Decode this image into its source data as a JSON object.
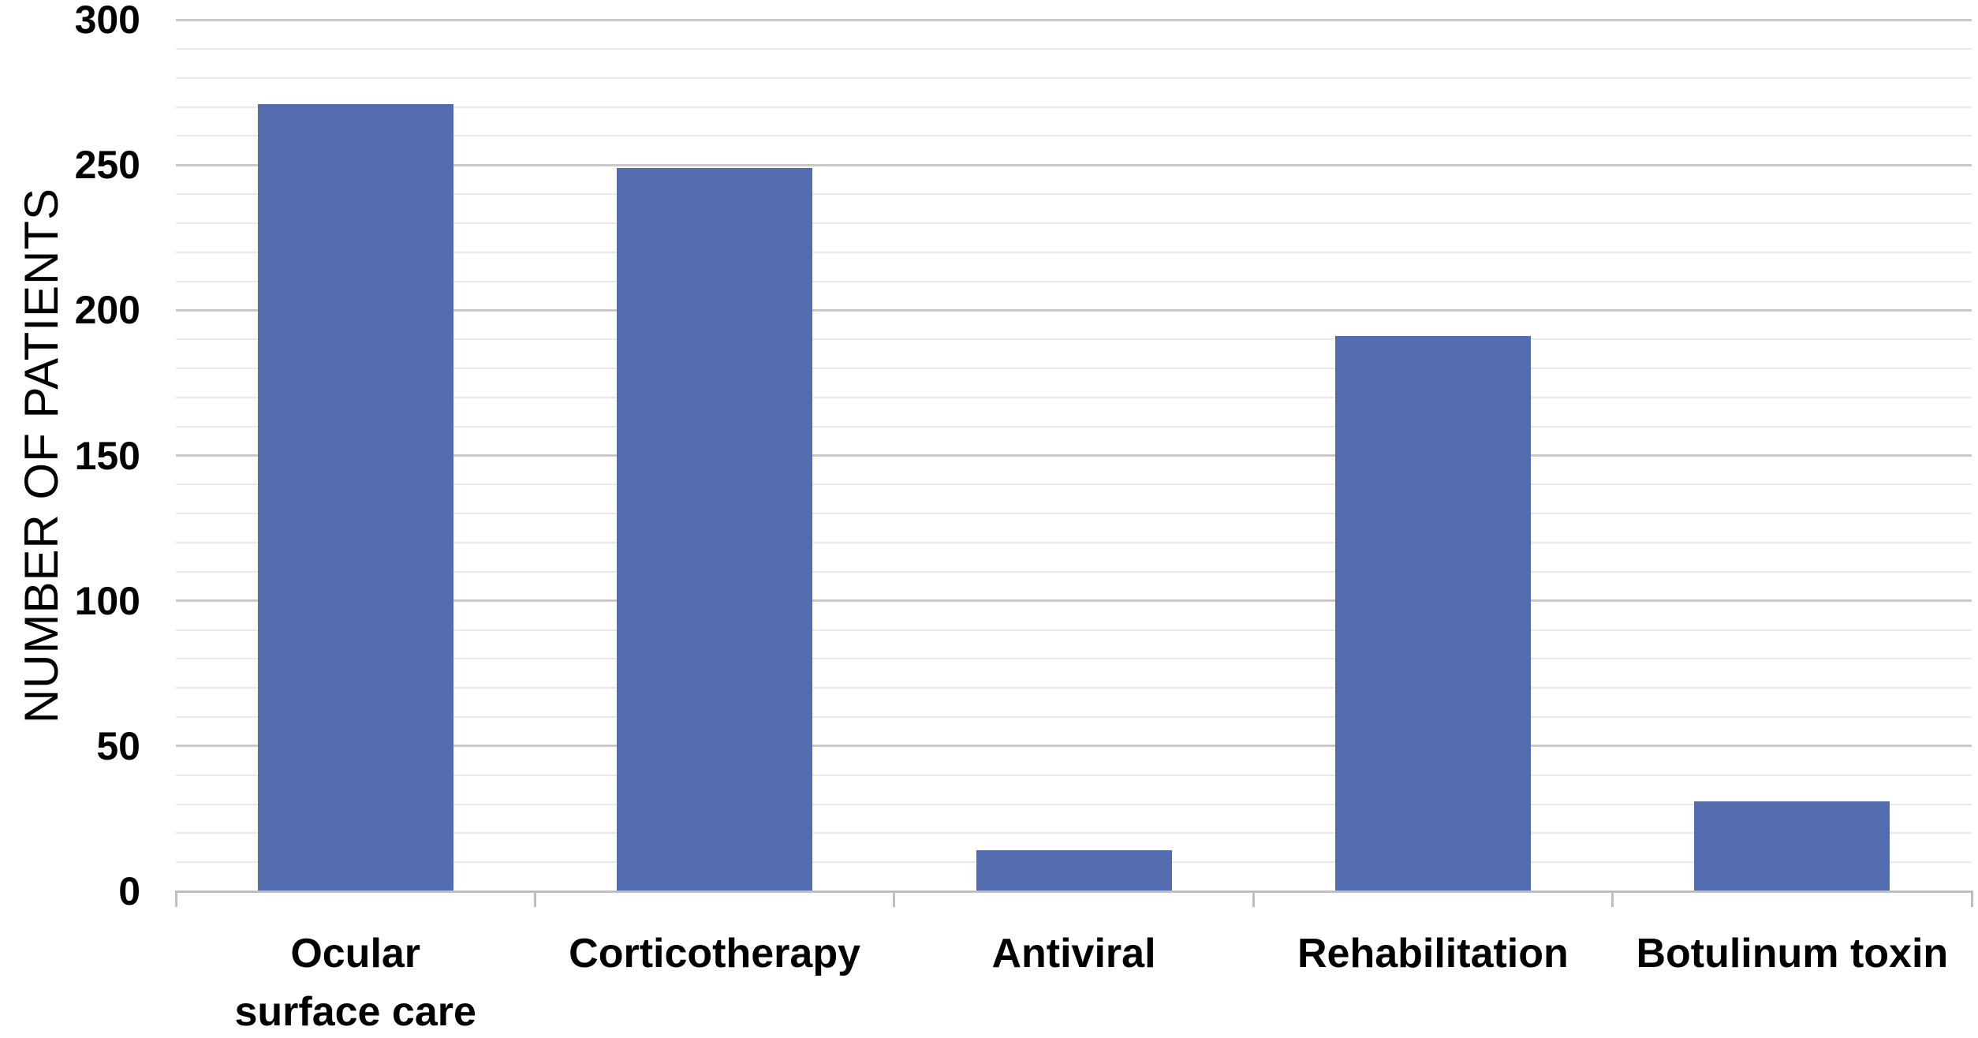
{
  "chart_data": {
    "type": "bar",
    "title": "",
    "xlabel": "",
    "ylabel": "NUMBER OF PATIENTS",
    "categories": [
      "Ocular surface care",
      "Corticotherapy",
      "Antiviral",
      "Rehabilitation",
      "Botulinum toxin"
    ],
    "category_label_lines": [
      [
        "Ocular",
        "surface care"
      ],
      [
        "Corticotherapy"
      ],
      [
        "Antiviral"
      ],
      [
        "Rehabilitation"
      ],
      [
        "Botulinum toxin"
      ]
    ],
    "values": [
      271,
      249,
      14,
      191,
      31
    ],
    "series": [
      {
        "name": "Number of patients",
        "values": [
          271,
          249,
          14,
          191,
          31
        ]
      }
    ],
    "ylim": [
      0,
      300
    ],
    "ytick_major_step": 50,
    "ytick_minor_step": 10,
    "ytick_labels": [
      "0",
      "50",
      "100",
      "150",
      "200",
      "250",
      "300"
    ],
    "grid": "horizontal-minor-and-major",
    "legend": "none",
    "bar_color_name": "muted-blue",
    "colors": {
      "bar_fill": "#526CAE",
      "gridline_minor": "#E9E9E9",
      "gridline_major": "#C9C9C9",
      "axis_line": "#BFBFBF",
      "text": "#000000",
      "background": "#FFFFFF"
    }
  }
}
